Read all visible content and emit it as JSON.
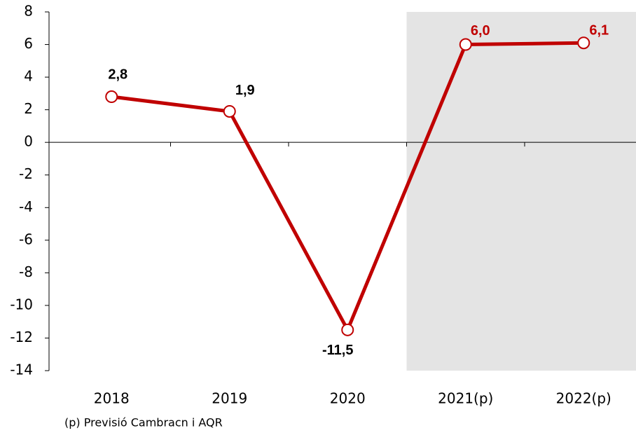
{
  "chart_data": {
    "type": "line",
    "categories": [
      "2018",
      "2019",
      "2020",
      "2021(p)",
      "2022(p)"
    ],
    "series": [
      {
        "color": "#c00000",
        "values": [
          2.8,
          1.9,
          -11.5,
          6.0,
          6.1
        ],
        "value_labels": [
          "2,8",
          "1,9",
          "-11,5",
          "6,0",
          "6,1"
        ]
      }
    ],
    "ylim": [
      -14,
      8
    ],
    "yticks": [
      -14,
      -12,
      -10,
      -8,
      -6,
      -4,
      -2,
      0,
      2,
      4,
      6,
      8
    ],
    "shaded_categories": [
      "2021(p)",
      "2022(p)"
    ],
    "shade_color": "#e4e4e4",
    "note": "(p) Previsió Cambracn i AQR"
  }
}
